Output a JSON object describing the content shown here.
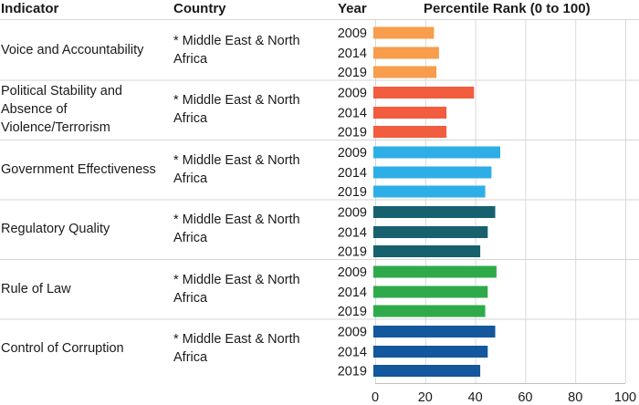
{
  "header": {
    "indicator": "Indicator",
    "country": "Country",
    "year": "Year",
    "percentile": "Percentile Rank (0 to 100)"
  },
  "chart_data": {
    "type": "bar",
    "orientation": "horizontal",
    "xlim": [
      0,
      100
    ],
    "x_ticks": [
      "0",
      "20",
      "40",
      "60",
      "80",
      "100"
    ],
    "groups": [
      {
        "indicator": "Voice and Accountability",
        "country": "* Middle East & North Africa",
        "bars": [
          {
            "year": "2009",
            "value": 23.5
          },
          {
            "year": "2014",
            "value": 25.5
          },
          {
            "year": "2019",
            "value": 24.5
          }
        ],
        "color": "#f79d4b"
      },
      {
        "indicator": "Political Stability and Absence of Violence/Terrorism",
        "country": "* Middle East & North Africa",
        "bars": [
          {
            "year": "2009",
            "value": 39.5
          },
          {
            "year": "2014",
            "value": 28.5
          },
          {
            "year": "2019",
            "value": 28.5
          }
        ],
        "color": "#f25c3f"
      },
      {
        "indicator": "Government Effectiveness",
        "country": "* Middle East & North Africa",
        "bars": [
          {
            "year": "2009",
            "value": 50.0
          },
          {
            "year": "2014",
            "value": 46.5
          },
          {
            "year": "2019",
            "value": 44.0
          }
        ],
        "color": "#2eaee6"
      },
      {
        "indicator": "Regulatory Quality",
        "country": "* Middle East & North Africa",
        "bars": [
          {
            "year": "2009",
            "value": 48.0
          },
          {
            "year": "2014",
            "value": 45.0
          },
          {
            "year": "2019",
            "value": 42.0
          }
        ],
        "color": "#17616f"
      },
      {
        "indicator": "Rule of Law",
        "country": "* Middle East & North Africa",
        "bars": [
          {
            "year": "2009",
            "value": 48.5
          },
          {
            "year": "2014",
            "value": 45.0
          },
          {
            "year": "2019",
            "value": 44.0
          }
        ],
        "color": "#2faa4b"
      },
      {
        "indicator": "Control of Corruption",
        "country": "* Middle East & North Africa",
        "bars": [
          {
            "year": "2009",
            "value": 48.0
          },
          {
            "year": "2014",
            "value": 45.0
          },
          {
            "year": "2019",
            "value": 42.0
          }
        ],
        "color": "#13579d"
      }
    ]
  }
}
